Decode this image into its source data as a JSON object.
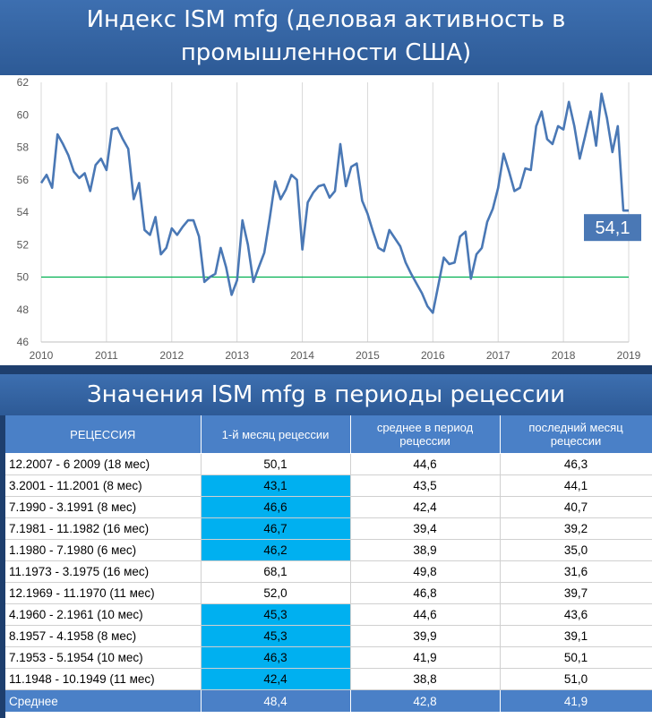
{
  "title": "Индекс ISM mfg (деловая активность в промышленности США)",
  "title_lines": [
    "Индекс ISM mfg (деловая активность в",
    "промышленности США)"
  ],
  "table_title": "Значения ISM mfg в периоды рецессии",
  "colors": {
    "banner": "#2d5a96",
    "line": "#4a78b5",
    "ref_line": "#00b050",
    "header": "#4a80c7",
    "highlight": "#00b0f0",
    "callout": "#4a78b5"
  },
  "chart_data": {
    "type": "line",
    "title": "Индекс ISM mfg (деловая активность в промышленности США)",
    "xlabel": "",
    "ylabel": "",
    "xlim": [
      2010,
      2019
    ],
    "ylim": [
      46,
      62
    ],
    "x_ticks": [
      "2010",
      "2011",
      "2012",
      "2013",
      "2014",
      "2015",
      "2016",
      "2017",
      "2018",
      "2019"
    ],
    "y_ticks": [
      46,
      48,
      50,
      52,
      54,
      56,
      58,
      60,
      62
    ],
    "grid": "vertical",
    "reference_line": 50,
    "callout": "54,1",
    "series": [
      {
        "x": [
          2010.0,
          2010.083,
          2010.167,
          2010.25,
          2010.333,
          2010.417,
          2010.5,
          2010.583,
          2010.667,
          2010.75,
          2010.833,
          2010.917,
          2011.0,
          2011.083,
          2011.167,
          2011.25,
          2011.333,
          2011.417,
          2011.5,
          2011.583,
          2011.667,
          2011.75,
          2011.833,
          2011.917,
          2012.0,
          2012.083,
          2012.167,
          2012.25,
          2012.333,
          2012.417,
          2012.5,
          2012.583,
          2012.667,
          2012.75,
          2012.833,
          2012.917,
          2013.0,
          2013.083,
          2013.167,
          2013.25,
          2013.333,
          2013.417,
          2013.5,
          2013.583,
          2013.667,
          2013.75,
          2013.833,
          2013.917,
          2014.0,
          2014.083,
          2014.167,
          2014.25,
          2014.333,
          2014.417,
          2014.5,
          2014.583,
          2014.667,
          2014.75,
          2014.833,
          2014.917,
          2015.0,
          2015.083,
          2015.167,
          2015.25,
          2015.333,
          2015.417,
          2015.5,
          2015.583,
          2015.667,
          2015.75,
          2015.833,
          2015.917,
          2016.0,
          2016.083,
          2016.167,
          2016.25,
          2016.333,
          2016.417,
          2016.5,
          2016.583,
          2016.667,
          2016.75,
          2016.833,
          2016.917,
          2017.0,
          2017.083,
          2017.167,
          2017.25,
          2017.333,
          2017.417,
          2017.5,
          2017.583,
          2017.667,
          2017.75,
          2017.833,
          2017.917,
          2018.0,
          2018.083,
          2018.167,
          2018.25,
          2018.333,
          2018.417,
          2018.5,
          2018.583,
          2018.667,
          2018.75,
          2018.833,
          2018.917,
          2019.0
        ],
        "y": [
          55.8,
          56.3,
          55.5,
          58.8,
          58.2,
          57.5,
          56.5,
          56.1,
          56.4,
          55.3,
          56.9,
          57.3,
          56.6,
          59.1,
          59.2,
          58.5,
          57.9,
          54.8,
          55.8,
          52.9,
          52.6,
          53.7,
          51.4,
          51.8,
          53.0,
          52.6,
          53.1,
          53.5,
          53.5,
          52.5,
          49.7,
          50.0,
          50.2,
          51.8,
          50.6,
          48.9,
          49.8,
          53.5,
          52.0,
          49.7,
          50.6,
          51.5,
          53.6,
          55.9,
          54.8,
          55.4,
          56.3,
          56.0,
          51.7,
          54.6,
          55.2,
          55.6,
          55.7,
          54.9,
          55.3,
          58.2,
          55.6,
          56.8,
          57.0,
          54.7,
          53.9,
          52.8,
          51.8,
          51.6,
          52.9,
          52.4,
          51.9,
          50.9,
          50.2,
          49.6,
          49.0,
          48.2,
          47.8,
          49.5,
          51.2,
          50.8,
          50.9,
          52.5,
          52.8,
          49.9,
          51.4,
          51.8,
          53.4,
          54.2,
          55.5,
          57.6,
          56.5,
          55.3,
          55.5,
          56.7,
          56.6,
          59.3,
          60.2,
          58.5,
          58.2,
          59.3,
          59.1,
          60.8,
          59.3,
          57.3,
          58.7,
          60.2,
          58.1,
          61.3,
          59.8,
          57.7,
          59.3,
          54.1,
          54.1
        ]
      }
    ]
  },
  "table": {
    "headers": [
      "РЕЦЕССИЯ",
      "1-й месяц рецессии",
      "среднее в период рецессии",
      "последний месяц рецессии"
    ],
    "rows": [
      {
        "period": "12.2007 - 6 2009 (18 мес)",
        "first": "50,1",
        "avg": "44,6",
        "last": "46,3",
        "hl": false
      },
      {
        "period": "3.2001 - 11.2001 (8 мес)",
        "first": "43,1",
        "avg": "43,5",
        "last": "44,1",
        "hl": true
      },
      {
        "period": "7.1990 - 3.1991 (8 мес)",
        "first": "46,6",
        "avg": "42,4",
        "last": "40,7",
        "hl": true
      },
      {
        "period": "7.1981 - 11.1982 (16 мес)",
        "first": "46,7",
        "avg": "39,4",
        "last": "39,2",
        "hl": true
      },
      {
        "period": "1.1980 - 7.1980 (6 мес)",
        "first": "46,2",
        "avg": "38,9",
        "last": "35,0",
        "hl": true
      },
      {
        "period": "11.1973 - 3.1975 (16 мес)",
        "first": "68,1",
        "avg": "49,8",
        "last": "31,6",
        "hl": false
      },
      {
        "period": "12.1969 - 11.1970 (11 мес)",
        "first": "52,0",
        "avg": "46,8",
        "last": "39,7",
        "hl": false
      },
      {
        "period": "4.1960 - 2.1961 (10 мес)",
        "first": "45,3",
        "avg": "44,6",
        "last": "43,6",
        "hl": true
      },
      {
        "period": "8.1957 - 4.1958 (8 мес)",
        "first": "45,3",
        "avg": "39,9",
        "last": "39,1",
        "hl": true
      },
      {
        "period": "7.1953 - 5.1954 (10 мес)",
        "first": "46,3",
        "avg": "41,9",
        "last": "50,1",
        "hl": true
      },
      {
        "period": "11.1948 - 10.1949 (11 мес)",
        "first": "42,4",
        "avg": "38,8",
        "last": "51,0",
        "hl": true
      }
    ],
    "footer": {
      "period": "Среднее",
      "first": "48,4",
      "avg": "42,8",
      "last": "41,9"
    }
  }
}
